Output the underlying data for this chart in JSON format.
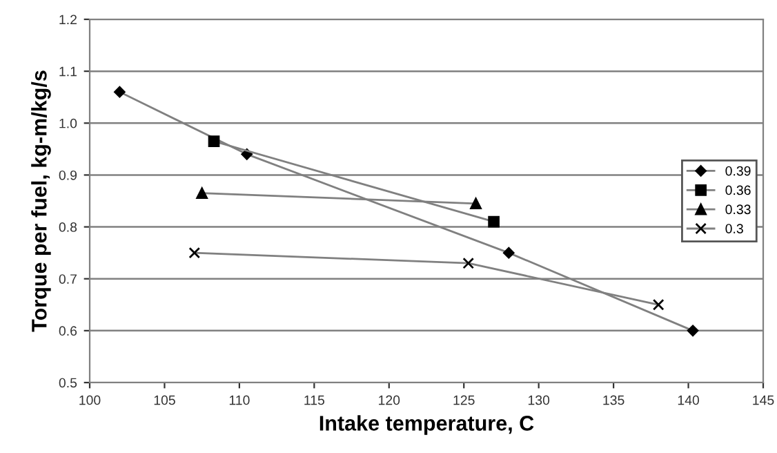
{
  "chart_data": {
    "type": "line",
    "xlabel": "Intake temperature, C",
    "ylabel": "Torque per fuel, kg-m/kg/s",
    "xlim": [
      100,
      145
    ],
    "xticks": [
      100,
      105,
      110,
      115,
      120,
      125,
      130,
      135,
      140,
      145
    ],
    "ylim": [
      0.5,
      1.2
    ],
    "yticks": [
      0.5,
      0.6,
      0.7,
      0.8,
      0.9,
      {
        "value": 1.0,
        "label": "1.0"
      },
      1.1,
      1.2
    ],
    "grid": "y",
    "legend": "right",
    "series": [
      {
        "name": "0.39",
        "color": "#000000",
        "marker": "diamond",
        "x": [
          102,
          110.5,
          128,
          140.3
        ],
        "values": [
          1.06,
          0.94,
          0.75,
          0.6
        ]
      },
      {
        "name": "0.36",
        "color": "#000000",
        "marker": "square",
        "x": [
          108.3,
          127
        ],
        "values": [
          0.965,
          0.81
        ]
      },
      {
        "name": "0.33",
        "color": "#000000",
        "marker": "triangle",
        "x": [
          107.5,
          125.8
        ],
        "values": [
          0.865,
          0.845
        ]
      },
      {
        "name": "0.3",
        "color": "#000000",
        "marker": "cross",
        "x": [
          107,
          125.3,
          138
        ],
        "values": [
          0.75,
          0.73,
          0.65
        ]
      }
    ]
  }
}
